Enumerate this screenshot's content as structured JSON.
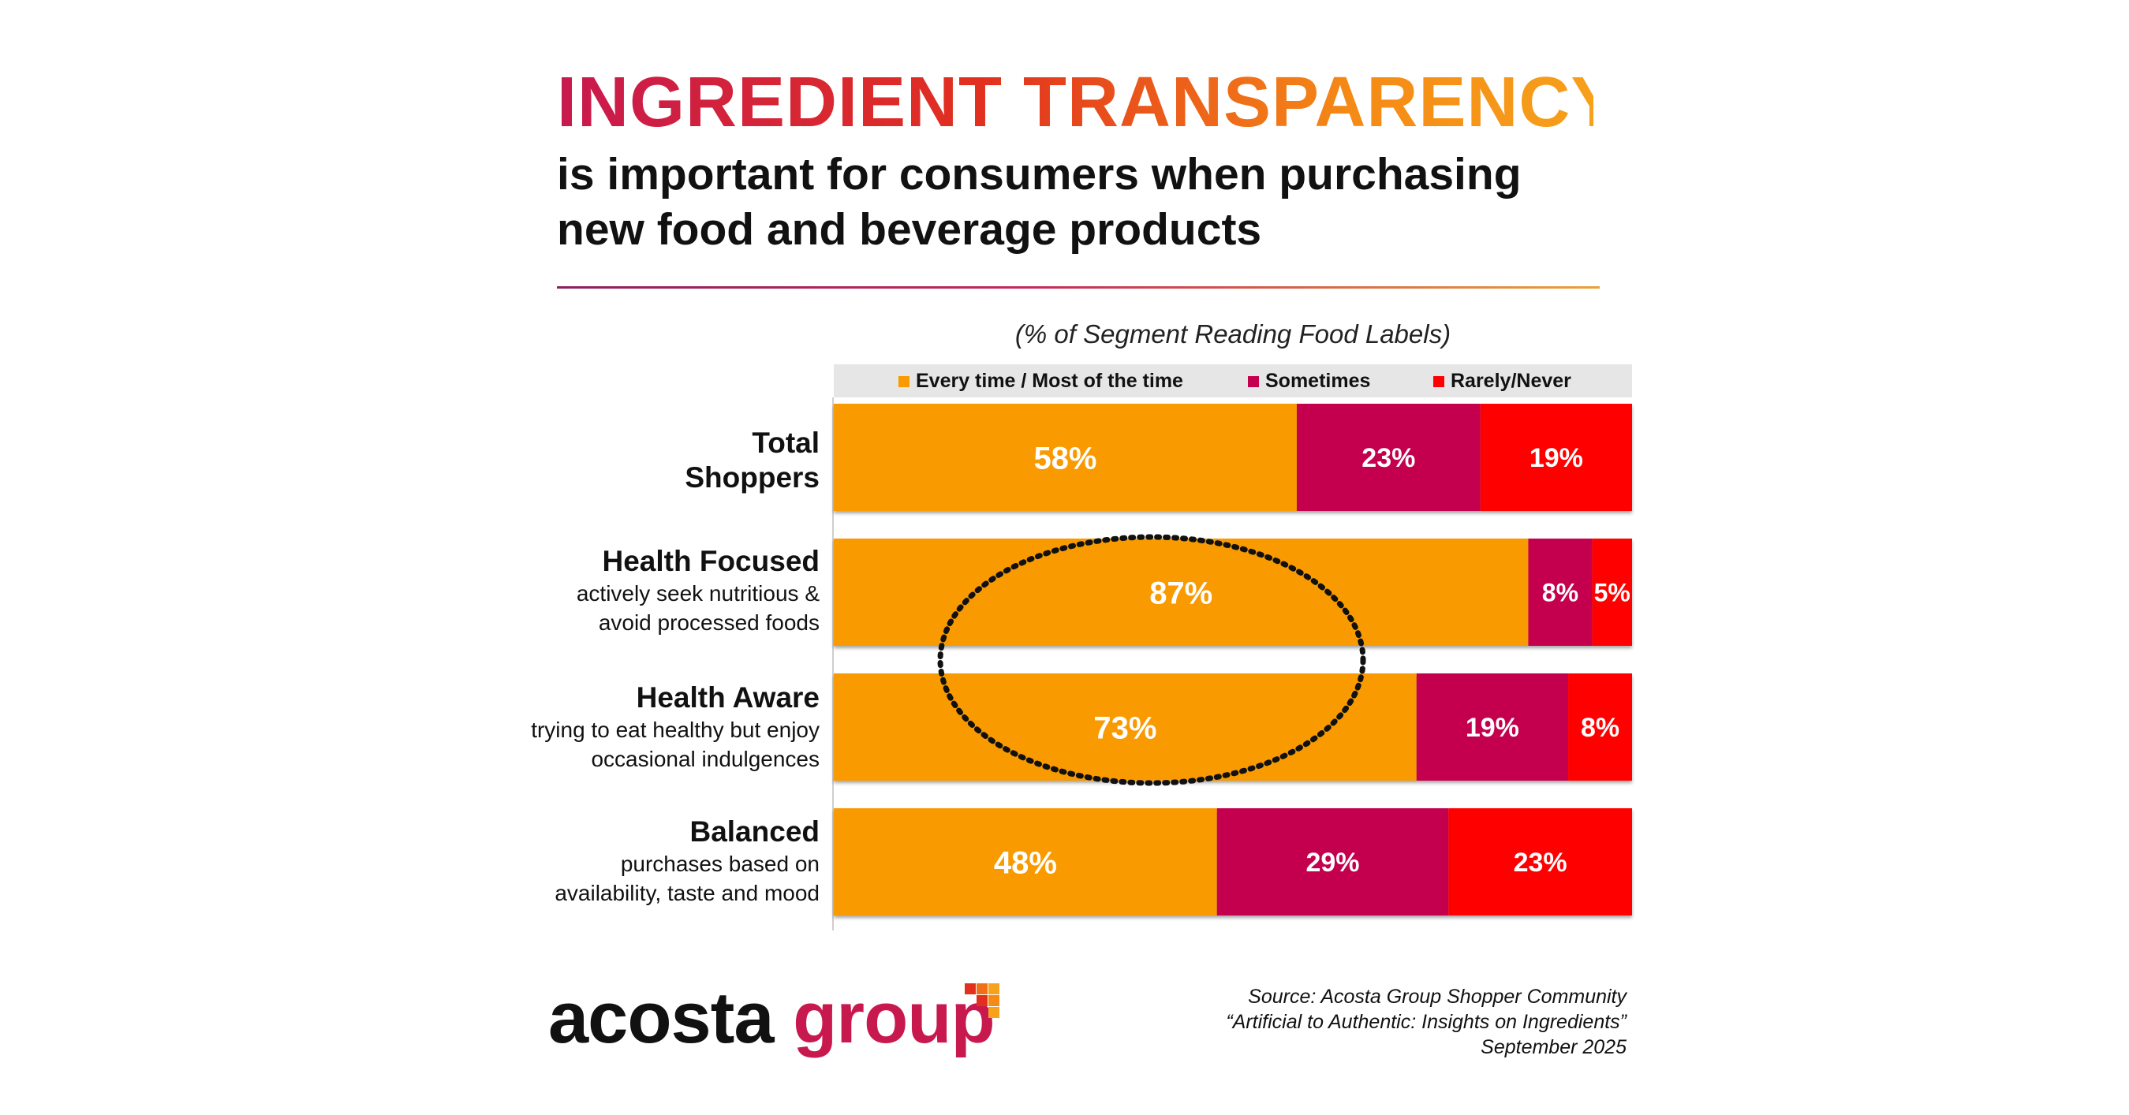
{
  "header": {
    "title": "INGREDIENT TRANSPARENCY",
    "subtitle_line1": "is important for consumers when purchasing",
    "subtitle_line2": "new food and beverage products"
  },
  "colors": {
    "title_gradient": [
      "#c8194f",
      "#e2301f",
      "#f58a16",
      "#f7a21b"
    ],
    "every_time": "#f99a00",
    "sometimes": "#c4004e",
    "rarely": "#ff0000"
  },
  "chart_data": {
    "type": "bar",
    "orientation": "horizontal",
    "stacked": true,
    "title": "(% of Segment Reading Food Labels)",
    "categories": [
      "Total Shoppers",
      "Health Focused",
      "Health Aware",
      "Balanced"
    ],
    "category_descriptions": [
      "",
      "actively seek nutritious & avoid processed foods",
      "trying to eat healthy but enjoy occasional indulgences",
      "purchases based on availability, taste and mood"
    ],
    "series": [
      {
        "name": "Every time / Most of the time",
        "values": [
          58,
          87,
          73,
          48
        ],
        "color": "#f99a00"
      },
      {
        "name": "Sometimes",
        "values": [
          23,
          8,
          19,
          29
        ],
        "color": "#c4004e"
      },
      {
        "name": "Rarely/Never",
        "values": [
          19,
          5,
          8,
          23
        ],
        "color": "#ff0000"
      }
    ],
    "unit": "%",
    "xlim": [
      0,
      100
    ],
    "legend_position": "top",
    "annotation": "dotted ellipse highlighting 87% and 73%"
  },
  "labels": {
    "total_shoppers_line1": "Total",
    "total_shoppers_line2": "Shoppers",
    "health_focused": "Health Focused",
    "health_focused_desc_line1": "actively seek nutritious &",
    "health_focused_desc_line2": "avoid processed foods",
    "health_aware": "Health Aware",
    "health_aware_desc_line1": "trying to eat healthy but enjoy",
    "health_aware_desc_line2": "occasional indulgences",
    "balanced": "Balanced",
    "balanced_desc_line1": "purchases based on",
    "balanced_desc_line2": "availability, taste and mood"
  },
  "legend": {
    "every_time": "Every time / Most of the time",
    "sometimes": "Sometimes",
    "rarely": "Rarely/Never"
  },
  "logo": {
    "word1": "acosta",
    "word2": "group"
  },
  "source": {
    "line1": "Source: Acosta Group Shopper Community",
    "line2": "“Artificial to Authentic: Insights on Ingredients”",
    "line3": "September 2025"
  }
}
